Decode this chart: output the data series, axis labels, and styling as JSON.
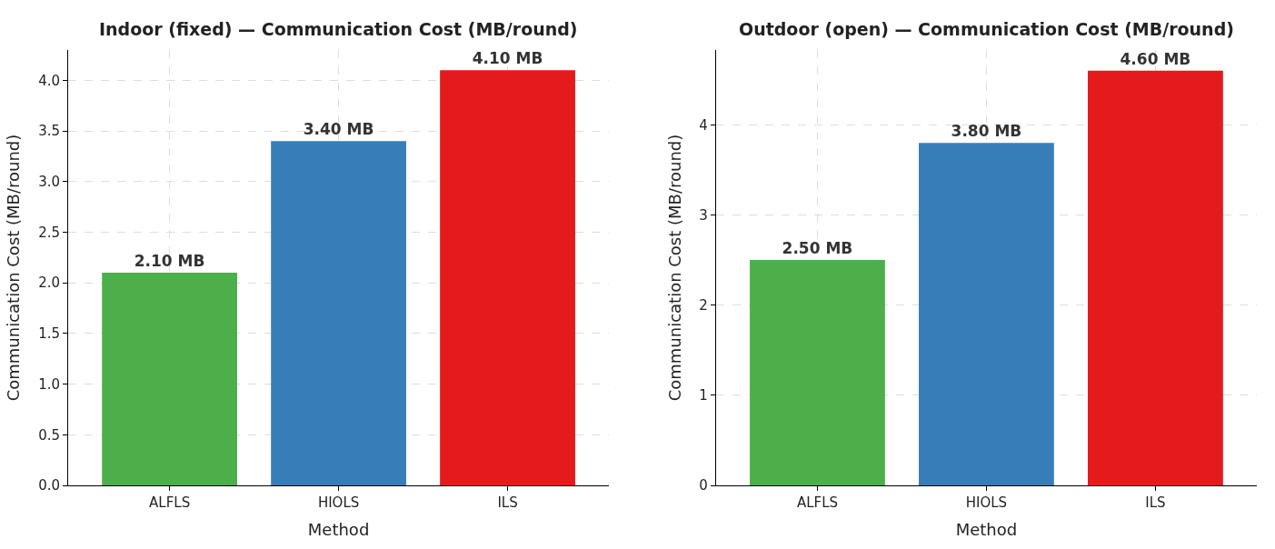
{
  "chart_data": [
    {
      "type": "bar",
      "title": "Indoor (fixed) — Communication Cost (MB/round)",
      "xlabel": "Method",
      "ylabel": "Communication Cost (MB/round)",
      "categories": [
        "ALFLS",
        "HIOLS",
        "ILS"
      ],
      "values": [
        2.1,
        3.4,
        4.1
      ],
      "colors": [
        "#4daf4a",
        "#377eb8",
        "#e41a1c"
      ],
      "value_labels": [
        "2.10 MB",
        "3.40 MB",
        "4.10 MB"
      ],
      "ylim": [
        0,
        4.3
      ],
      "yticks": [
        {
          "value": 0,
          "label": "0.0"
        },
        0.5,
        {
          "value": 1,
          "label": "1.0"
        },
        1.5,
        {
          "value": 2,
          "label": "2.0"
        },
        2.5,
        {
          "value": 3,
          "label": "3.0"
        },
        3.5,
        {
          "value": 4,
          "label": "4.0"
        }
      ],
      "grid": true
    },
    {
      "type": "bar",
      "title": "Outdoor (open) — Communication Cost (MB/round)",
      "xlabel": "Method",
      "ylabel": "Communication Cost (MB/round)",
      "categories": [
        "ALFLS",
        "HIOLS",
        "ILS"
      ],
      "values": [
        2.5,
        3.8,
        4.6
      ],
      "colors": [
        "#4daf4a",
        "#377eb8",
        "#e41a1c"
      ],
      "value_labels": [
        "2.50 MB",
        "3.80 MB",
        "4.60 MB"
      ],
      "ylim": [
        0,
        4.83
      ],
      "yticks": [
        0,
        1,
        2,
        3,
        4
      ],
      "grid": true
    }
  ]
}
